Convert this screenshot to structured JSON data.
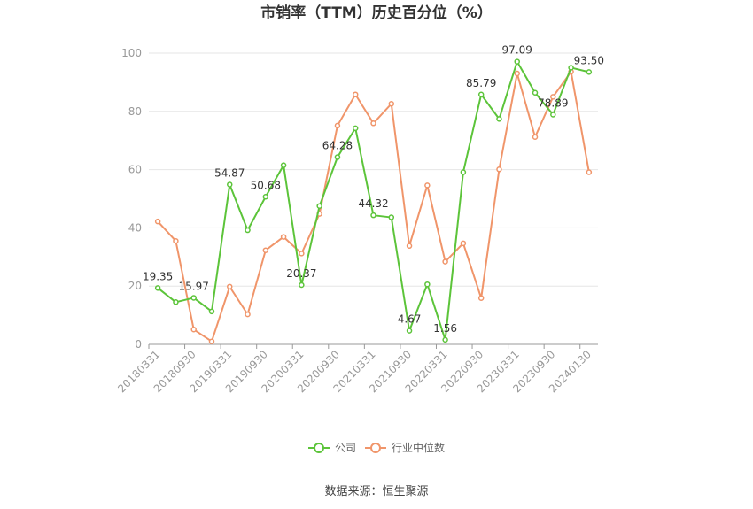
{
  "chart_data": {
    "type": "line",
    "title": "市销率（TTM）历史百分位（%）",
    "xlabel": "",
    "ylabel": "",
    "ylim": [
      0,
      100
    ],
    "yticks": [
      0,
      20,
      40,
      60,
      80,
      100
    ],
    "grid": true,
    "legend_position": "bottom",
    "x": [
      "20180331",
      "20180630",
      "20180930",
      "20181231",
      "20190331",
      "20190630",
      "20190930",
      "20191231",
      "20200331",
      "20200630",
      "20200930",
      "20201231",
      "20210331",
      "20210630",
      "20210930",
      "20211231",
      "20220331",
      "20220630",
      "20220930",
      "20221231",
      "20230331",
      "20230630",
      "20230930",
      "20231231",
      "20240130"
    ],
    "xtick_labels": [
      "20180331",
      "20180930",
      "20190331",
      "20190930",
      "20200331",
      "20200930",
      "20210331",
      "20210930",
      "20220331",
      "20220930",
      "20230331",
      "20230930",
      "20240130"
    ],
    "series": [
      {
        "name": "公司",
        "color": "#5cc43a",
        "values": [
          19.35,
          14.5,
          15.97,
          11.3,
          54.87,
          39.2,
          50.68,
          61.5,
          20.37,
          47.5,
          64.28,
          74.2,
          44.32,
          43.6,
          4.67,
          20.6,
          1.56,
          59.1,
          85.79,
          77.4,
          97.09,
          86.4,
          78.89,
          95.0,
          93.5
        ],
        "data_labels": [
          {
            "index": 0,
            "text": "19.35"
          },
          {
            "index": 2,
            "text": "15.97"
          },
          {
            "index": 4,
            "text": "54.87"
          },
          {
            "index": 6,
            "text": "50.68"
          },
          {
            "index": 8,
            "text": "20.37"
          },
          {
            "index": 10,
            "text": "64.28"
          },
          {
            "index": 12,
            "text": "44.32"
          },
          {
            "index": 14,
            "text": "4.67"
          },
          {
            "index": 16,
            "text": "1.56"
          },
          {
            "index": 18,
            "text": "85.79"
          },
          {
            "index": 20,
            "text": "97.09"
          },
          {
            "index": 22,
            "text": "78.89"
          },
          {
            "index": 24,
            "text": "93.50"
          }
        ]
      },
      {
        "name": "行业中位数",
        "color": "#f0956a",
        "values": [
          42.2,
          35.5,
          5.1,
          1.0,
          19.8,
          10.3,
          32.3,
          36.9,
          31.2,
          44.8,
          75.1,
          85.8,
          75.9,
          82.6,
          33.8,
          54.6,
          28.4,
          34.7,
          15.9,
          60.1,
          93.0,
          71.2,
          85.0,
          93.6,
          59.1
        ],
        "data_labels": []
      }
    ]
  },
  "footer": {
    "source": "数据来源：恒生聚源"
  }
}
